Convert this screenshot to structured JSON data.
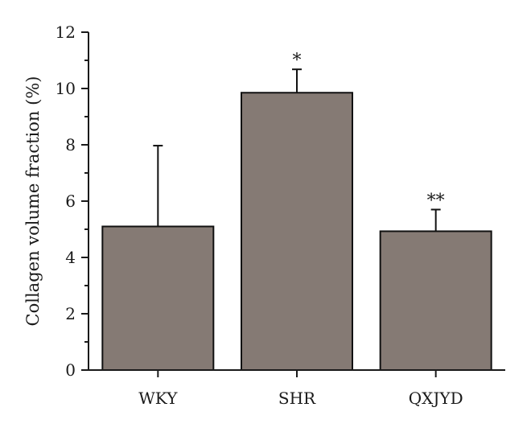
{
  "chart_data": {
    "type": "bar",
    "title": "",
    "xlabel": "",
    "ylabel": "Collagen volume fraction (%)",
    "ylim": [
      0,
      12
    ],
    "yticks": [
      0,
      2,
      4,
      6,
      8,
      10,
      12
    ],
    "categories": [
      "WKY",
      "SHR",
      "QXJYD"
    ],
    "values": [
      5.1,
      9.85,
      4.93
    ],
    "errors": [
      2.87,
      0.83,
      0.77
    ],
    "annotations": [
      "",
      "*",
      "**"
    ],
    "bar_color": "#857a74",
    "grid": false,
    "legend": "none"
  }
}
